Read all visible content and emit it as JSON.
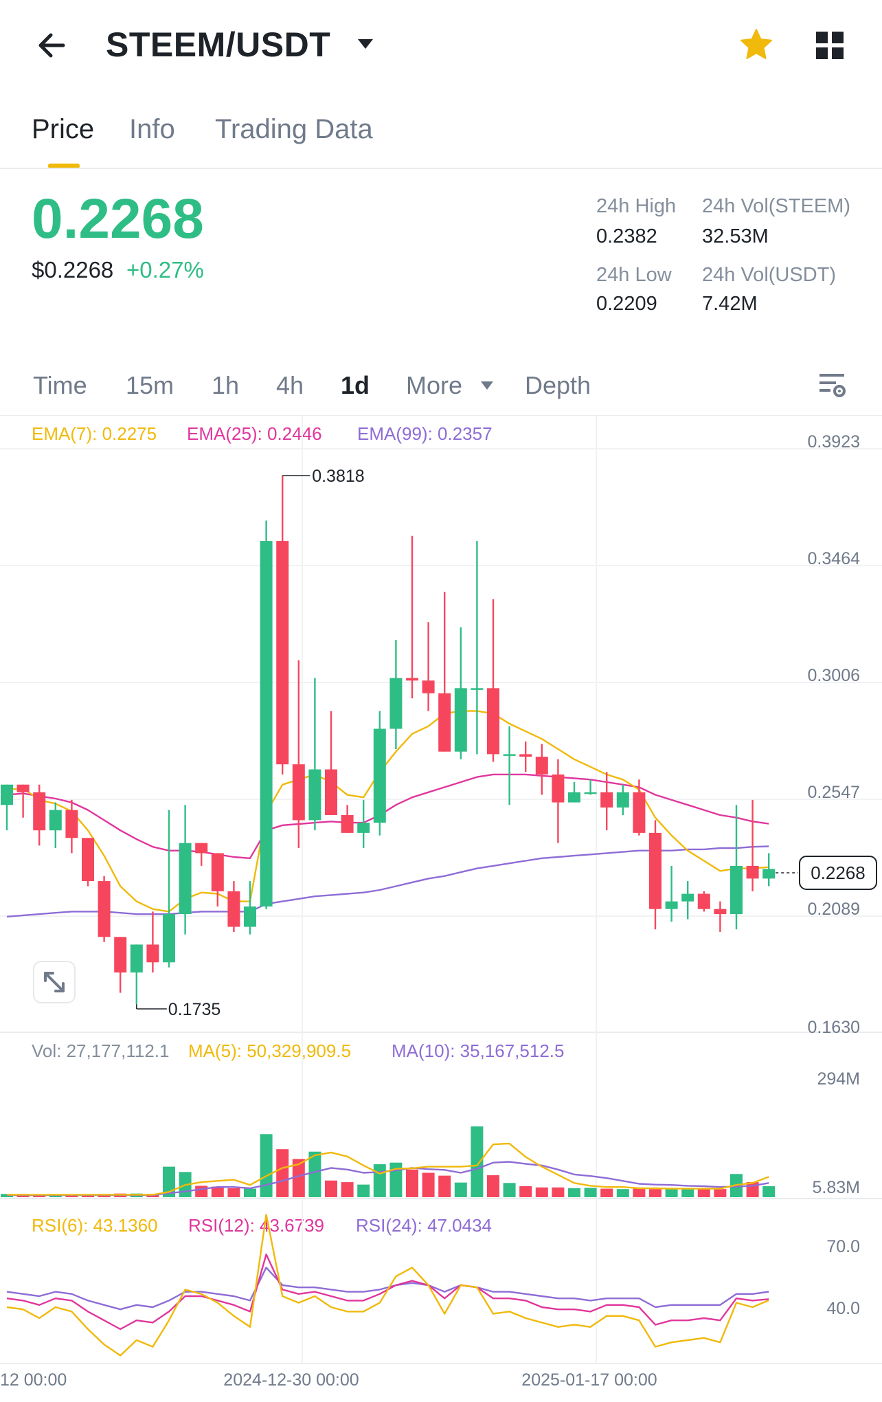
{
  "header": {
    "pair": "STEEM/USDT",
    "tabs": [
      "Price",
      "Info",
      "Trading Data"
    ]
  },
  "ticker": {
    "last_price": "0.2268",
    "usd_price": "$0.2268",
    "change_pct": "+0.27%",
    "high_label": "24h High",
    "high_value": "0.2382",
    "low_label": "24h Low",
    "low_value": "0.2209",
    "vol_base_label": "24h Vol(STEEM)",
    "vol_base_value": "32.53M",
    "vol_quote_label": "24h Vol(USDT)",
    "vol_quote_value": "7.42M"
  },
  "intervals": {
    "time": "Time",
    "m15": "15m",
    "h1": "1h",
    "h4": "4h",
    "d1": "1d",
    "more": "More",
    "depth": "Depth",
    "selected": "1d"
  },
  "legends": {
    "ema7": "EMA(7): 0.2275",
    "ema25": "EMA(25): 0.2446",
    "ema99": "EMA(99): 0.2357",
    "vol": "Vol: 27,177,112.1",
    "ma5": "MA(5): 50,329,909.5",
    "ma10": "MA(10): 35,167,512.5",
    "rsi6": "RSI(6): 43.1360",
    "rsi12": "RSI(12): 43.6739",
    "rsi24": "RSI(24): 47.0434"
  },
  "colors": {
    "up": "#2ebd85",
    "down": "#f6465d",
    "accent": "#f0b90b",
    "ema7": "#f0b90b",
    "ema25": "#e0369d",
    "ema99": "#8e6cd6"
  },
  "icons": {
    "back": "arrow-left-icon",
    "dropdown": "chevron-down-icon",
    "favorite": "star-icon",
    "apps": "grid-icon",
    "settings": "chart-settings-icon",
    "expand": "expand-icon"
  },
  "chart_data": {
    "type": "candlestick",
    "price_axis_ticks": [
      "0.3923",
      "0.3464",
      "0.3006",
      "0.2547",
      "0.2089",
      "0.1630"
    ],
    "price_ylim": [
      0.163,
      0.3923
    ],
    "current_price_label": "0.2268",
    "high_marker": "0.3818",
    "low_marker": "0.1735",
    "x_tick_labels": [
      "12 00:00",
      "2024-12-30 00:00",
      "2025-01-17 00:00"
    ],
    "candles": [
      {
        "o": 0.252,
        "h": 0.26,
        "l": 0.242,
        "c": 0.26
      },
      {
        "o": 0.26,
        "h": 0.26,
        "l": 0.247,
        "c": 0.257
      },
      {
        "o": 0.257,
        "h": 0.26,
        "l": 0.236,
        "c": 0.242
      },
      {
        "o": 0.242,
        "h": 0.253,
        "l": 0.235,
        "c": 0.25
      },
      {
        "o": 0.25,
        "h": 0.254,
        "l": 0.233,
        "c": 0.239
      },
      {
        "o": 0.239,
        "h": 0.239,
        "l": 0.22,
        "c": 0.222
      },
      {
        "o": 0.222,
        "h": 0.224,
        "l": 0.198,
        "c": 0.2
      },
      {
        "o": 0.2,
        "h": 0.2,
        "l": 0.178,
        "c": 0.186
      },
      {
        "o": 0.186,
        "h": 0.197,
        "l": 0.1735,
        "c": 0.197
      },
      {
        "o": 0.197,
        "h": 0.21,
        "l": 0.186,
        "c": 0.19
      },
      {
        "o": 0.19,
        "h": 0.25,
        "l": 0.188,
        "c": 0.209
      },
      {
        "o": 0.209,
        "h": 0.252,
        "l": 0.201,
        "c": 0.237
      },
      {
        "o": 0.237,
        "h": 0.237,
        "l": 0.228,
        "c": 0.233
      },
      {
        "o": 0.233,
        "h": 0.233,
        "l": 0.212,
        "c": 0.218
      },
      {
        "o": 0.218,
        "h": 0.222,
        "l": 0.202,
        "c": 0.204
      },
      {
        "o": 0.204,
        "h": 0.222,
        "l": 0.201,
        "c": 0.212
      },
      {
        "o": 0.212,
        "h": 0.364,
        "l": 0.211,
        "c": 0.356
      },
      {
        "o": 0.356,
        "h": 0.3818,
        "l": 0.264,
        "c": 0.268
      },
      {
        "o": 0.268,
        "h": 0.309,
        "l": 0.235,
        "c": 0.246
      },
      {
        "o": 0.246,
        "h": 0.302,
        "l": 0.242,
        "c": 0.266
      },
      {
        "o": 0.266,
        "h": 0.289,
        "l": 0.248,
        "c": 0.248
      },
      {
        "o": 0.248,
        "h": 0.252,
        "l": 0.241,
        "c": 0.241
      },
      {
        "o": 0.241,
        "h": 0.254,
        "l": 0.235,
        "c": 0.245
      },
      {
        "o": 0.245,
        "h": 0.289,
        "l": 0.24,
        "c": 0.282
      },
      {
        "o": 0.282,
        "h": 0.317,
        "l": 0.274,
        "c": 0.302
      },
      {
        "o": 0.302,
        "h": 0.358,
        "l": 0.294,
        "c": 0.301
      },
      {
        "o": 0.301,
        "h": 0.324,
        "l": 0.289,
        "c": 0.296
      },
      {
        "o": 0.296,
        "h": 0.336,
        "l": 0.273,
        "c": 0.273
      },
      {
        "o": 0.273,
        "h": 0.322,
        "l": 0.27,
        "c": 0.298
      },
      {
        "o": 0.298,
        "h": 0.356,
        "l": 0.272,
        "c": 0.298
      },
      {
        "o": 0.298,
        "h": 0.333,
        "l": 0.269,
        "c": 0.272
      },
      {
        "o": 0.272,
        "h": 0.283,
        "l": 0.252,
        "c": 0.272
      },
      {
        "o": 0.272,
        "h": 0.277,
        "l": 0.265,
        "c": 0.271
      },
      {
        "o": 0.271,
        "h": 0.276,
        "l": 0.256,
        "c": 0.264
      },
      {
        "o": 0.264,
        "h": 0.27,
        "l": 0.237,
        "c": 0.253
      },
      {
        "o": 0.253,
        "h": 0.261,
        "l": 0.253,
        "c": 0.257
      },
      {
        "o": 0.257,
        "h": 0.262,
        "l": 0.256,
        "c": 0.257
      },
      {
        "o": 0.257,
        "h": 0.265,
        "l": 0.242,
        "c": 0.251
      },
      {
        "o": 0.251,
        "h": 0.26,
        "l": 0.248,
        "c": 0.257
      },
      {
        "o": 0.257,
        "h": 0.262,
        "l": 0.24,
        "c": 0.241
      },
      {
        "o": 0.241,
        "h": 0.246,
        "l": 0.203,
        "c": 0.211
      },
      {
        "o": 0.211,
        "h": 0.228,
        "l": 0.206,
        "c": 0.214
      },
      {
        "o": 0.214,
        "h": 0.222,
        "l": 0.207,
        "c": 0.217
      },
      {
        "o": 0.217,
        "h": 0.218,
        "l": 0.21,
        "c": 0.211
      },
      {
        "o": 0.211,
        "h": 0.214,
        "l": 0.202,
        "c": 0.209
      },
      {
        "o": 0.209,
        "h": 0.252,
        "l": 0.203,
        "c": 0.228
      },
      {
        "o": 0.228,
        "h": 0.254,
        "l": 0.218,
        "c": 0.223
      },
      {
        "o": 0.223,
        "h": 0.233,
        "l": 0.22,
        "c": 0.2268
      }
    ],
    "ema7": [
      0.258,
      0.2585,
      0.254,
      0.2525,
      0.2495,
      0.242,
      0.232,
      0.22,
      0.214,
      0.211,
      0.21,
      0.215,
      0.2175,
      0.217,
      0.214,
      0.214,
      0.249,
      0.26,
      0.262,
      0.264,
      0.261,
      0.256,
      0.255,
      0.265,
      0.273,
      0.28,
      0.283,
      0.288,
      0.289,
      0.289,
      0.288,
      0.284,
      0.281,
      0.278,
      0.274,
      0.27,
      0.267,
      0.264,
      0.262,
      0.258,
      0.247,
      0.24,
      0.234,
      0.23,
      0.226,
      0.227,
      0.227,
      0.2275
    ],
    "ema25": [
      0.256,
      0.2565,
      0.2555,
      0.2545,
      0.253,
      0.25,
      0.246,
      0.242,
      0.2385,
      0.2355,
      0.234,
      0.234,
      0.2335,
      0.2325,
      0.2315,
      0.231,
      0.242,
      0.244,
      0.2445,
      0.245,
      0.2455,
      0.245,
      0.245,
      0.248,
      0.252,
      0.255,
      0.257,
      0.259,
      0.261,
      0.263,
      0.264,
      0.264,
      0.264,
      0.2635,
      0.263,
      0.2625,
      0.262,
      0.261,
      0.26,
      0.259,
      0.256,
      0.254,
      0.252,
      0.25,
      0.248,
      0.247,
      0.2455,
      0.2446
    ],
    "ema99": [
      0.208,
      0.2085,
      0.209,
      0.2095,
      0.21,
      0.21,
      0.21,
      0.2095,
      0.209,
      0.209,
      0.209,
      0.2095,
      0.21,
      0.21,
      0.21,
      0.21,
      0.213,
      0.214,
      0.215,
      0.216,
      0.2165,
      0.217,
      0.2175,
      0.2185,
      0.22,
      0.2215,
      0.223,
      0.224,
      0.2255,
      0.227,
      0.228,
      0.229,
      0.23,
      0.231,
      0.2315,
      0.232,
      0.2325,
      0.233,
      0.2335,
      0.234,
      0.234,
      0.234,
      0.2345,
      0.2345,
      0.235,
      0.235,
      0.2355,
      0.2357
    ],
    "volume_axis_ticks": [
      "294M",
      "5.83M"
    ],
    "volume_ylim": [
      0,
      294
    ],
    "volume": [
      8,
      8,
      7,
      7,
      7,
      7,
      8,
      9,
      9,
      8,
      75,
      62,
      28,
      26,
      22,
      21,
      155,
      118,
      94,
      112,
      41,
      37,
      31,
      81,
      85,
      68,
      60,
      53,
      36,
      174,
      54,
      35,
      27,
      24,
      24,
      22,
      23,
      21,
      20,
      21,
      20,
      21,
      21,
      21,
      20,
      57,
      37,
      27
    ],
    "ma5": [
      6,
      6,
      6,
      6,
      6,
      6,
      6,
      6,
      6,
      6,
      13,
      30,
      37,
      40,
      43,
      30,
      52,
      72,
      81,
      103,
      110,
      100,
      78,
      58,
      70,
      71,
      75,
      75,
      75,
      78,
      130,
      132,
      99,
      75,
      55,
      35,
      28,
      25,
      25,
      22,
      22,
      21,
      21,
      21,
      21,
      30,
      35,
      50
    ],
    "ma10": [
      5,
      5,
      5,
      5,
      5,
      5,
      5,
      5,
      5,
      5,
      10,
      14,
      20,
      25,
      25,
      22,
      30,
      40,
      52,
      62,
      72,
      68,
      60,
      62,
      66,
      72,
      69,
      67,
      60,
      70,
      85,
      87,
      82,
      78,
      68,
      56,
      52,
      47,
      40,
      33,
      31,
      30,
      28,
      27,
      25,
      26,
      28,
      35
    ],
    "rsi_axis_ticks": [
      "70.0",
      "40.0"
    ],
    "rsi_ylim": [
      15,
      85
    ],
    "rsi6": [
      40,
      39,
      35,
      40,
      38,
      30,
      23,
      18,
      25,
      22,
      34,
      48,
      46,
      42,
      36,
      31,
      82,
      45,
      42,
      45,
      40,
      38,
      38,
      42,
      54,
      58,
      50,
      37,
      50,
      49,
      37,
      38,
      35,
      33,
      31,
      32,
      31,
      36,
      36,
      34,
      22,
      24,
      25,
      26,
      24,
      42,
      40,
      43.14
    ],
    "rsi12": [
      44,
      43,
      41,
      44,
      43,
      38,
      34,
      30,
      34,
      33,
      38,
      45,
      45,
      43,
      41,
      38,
      64,
      48,
      46,
      47,
      45,
      43,
      43,
      46,
      50,
      52,
      50,
      44,
      50,
      49,
      44,
      44,
      43,
      40,
      39,
      39,
      38,
      41,
      41,
      40,
      32,
      34,
      34,
      35,
      34,
      44,
      43,
      43.67
    ],
    "rsi24": [
      47,
      46,
      45,
      47,
      46,
      43,
      41,
      39,
      41,
      40,
      43,
      47,
      47,
      46,
      45,
      43,
      58,
      50,
      49,
      49,
      48,
      47,
      47,
      48,
      50,
      51,
      50,
      47,
      50,
      49,
      47,
      47,
      46,
      45,
      44,
      44,
      43,
      44,
      44,
      44,
      40,
      41,
      41,
      41,
      41,
      46,
      46,
      47.04
    ]
  }
}
